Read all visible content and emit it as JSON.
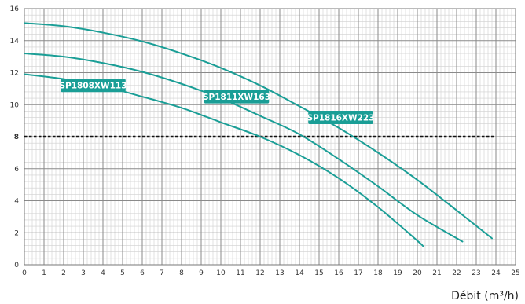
{
  "chart_data": {
    "type": "line",
    "title": "",
    "xlabel": "Débit (m³/h)",
    "ylabel": "",
    "xlim": [
      0,
      25
    ],
    "ylim": [
      0,
      16
    ],
    "x_ticks": [
      "0",
      "1",
      "2",
      "3",
      "4",
      "5",
      "6",
      "7",
      "8",
      "9",
      "10",
      "11",
      "12",
      "13",
      "14",
      "15",
      "16",
      "17",
      "18",
      "19",
      "20",
      "21",
      "22",
      "23",
      "24",
      "25"
    ],
    "y_ticks": [
      "0",
      "2",
      "4",
      "6",
      "8",
      "10",
      "12",
      "14",
      "16"
    ],
    "grid": true,
    "reference_line": {
      "y": 8,
      "label": "8",
      "style": "dashed",
      "color": "#111111"
    },
    "series_color": "#1a9e96",
    "series": [
      {
        "name": "SP1808XW113",
        "label_at": {
          "x": 3.5,
          "y": 11.2
        },
        "points": [
          [
            0,
            11.9
          ],
          [
            2,
            11.6
          ],
          [
            4,
            11.15
          ],
          [
            6,
            10.5
          ],
          [
            8,
            9.8
          ],
          [
            10,
            8.9
          ],
          [
            12,
            8.0
          ],
          [
            14,
            6.85
          ],
          [
            16,
            5.4
          ],
          [
            18,
            3.6
          ],
          [
            20,
            1.5
          ],
          [
            20.3,
            1.15
          ]
        ]
      },
      {
        "name": "SP1811XW163",
        "label_at": {
          "x": 10.8,
          "y": 10.5
        },
        "points": [
          [
            0,
            13.2
          ],
          [
            2,
            13.0
          ],
          [
            4,
            12.6
          ],
          [
            6,
            12.05
          ],
          [
            8,
            11.3
          ],
          [
            10,
            10.4
          ],
          [
            12,
            9.3
          ],
          [
            14,
            8.15
          ],
          [
            16,
            6.6
          ],
          [
            18,
            4.9
          ],
          [
            20,
            3.1
          ],
          [
            22.3,
            1.45
          ]
        ]
      },
      {
        "name": "SP1816XW223",
        "label_at": {
          "x": 16.1,
          "y": 9.2
        },
        "points": [
          [
            0,
            15.1
          ],
          [
            2,
            14.9
          ],
          [
            4,
            14.5
          ],
          [
            6,
            13.95
          ],
          [
            8,
            13.2
          ],
          [
            10,
            12.3
          ],
          [
            12,
            11.2
          ],
          [
            14,
            9.9
          ],
          [
            16,
            8.55
          ],
          [
            18,
            7.0
          ],
          [
            20,
            5.3
          ],
          [
            22,
            3.4
          ],
          [
            23.8,
            1.65
          ]
        ]
      }
    ]
  }
}
